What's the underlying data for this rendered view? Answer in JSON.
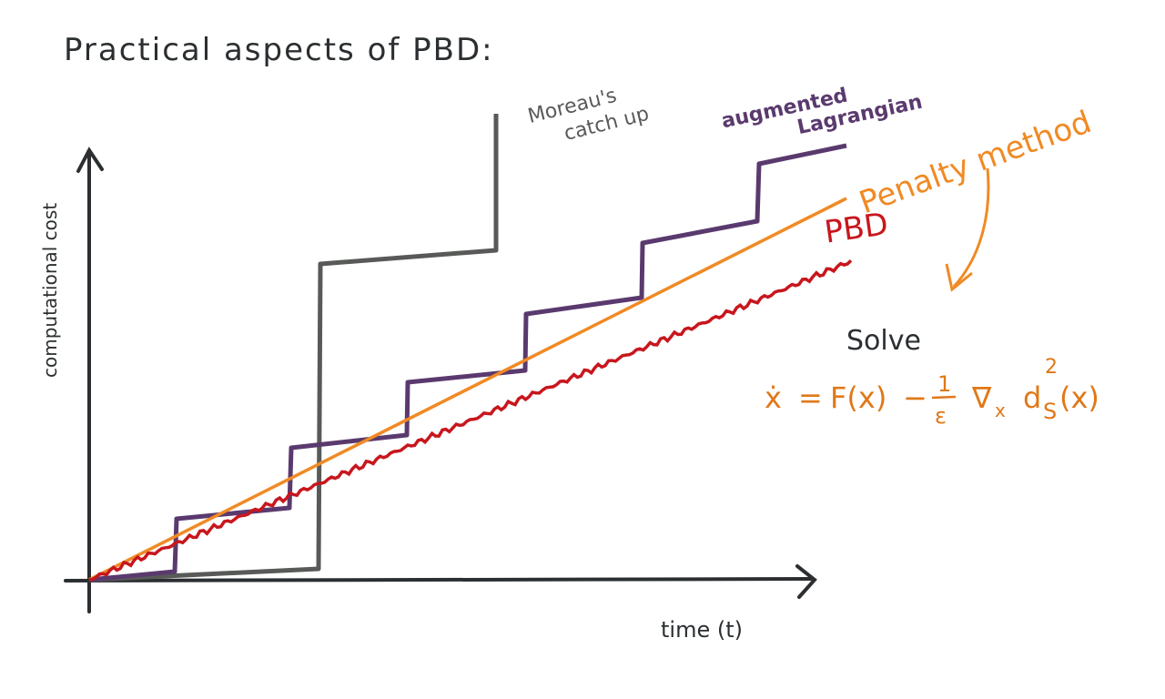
{
  "title": "Practical aspects of PBD:",
  "axes": {
    "y_label": "computational cost",
    "x_label": "time (t)"
  },
  "curves": {
    "moreau": [
      "Moreau's",
      "catch up"
    ],
    "augmented": [
      "augmented",
      "Lagrangian"
    ],
    "penalty": "Penalty method",
    "pbd": "PBD"
  },
  "note": {
    "heading": "Solve",
    "equation": {
      "lhs": "ẋ",
      "equals": "=",
      "force": "F(x)",
      "minus": "−",
      "numerator": "1",
      "denominator": "ε",
      "nabla": "∇",
      "nabla_sub": "x",
      "d": "d",
      "d_sub": "S",
      "d_sup": "2",
      "arg": "(x)"
    }
  }
}
